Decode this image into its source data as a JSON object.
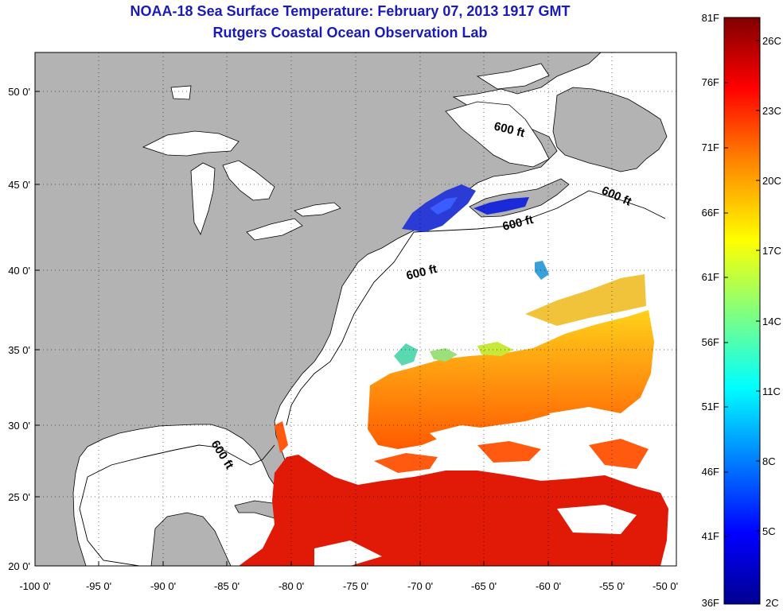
{
  "title": {
    "line1": "NOAA-18 Sea Surface Temperature:  February 07, 2013 1917 GMT",
    "line2": "Rutgers Coastal Ocean Observation Lab"
  },
  "map": {
    "lon_range": [
      -100,
      -50
    ],
    "lat_range": [
      20,
      52.5
    ],
    "x_ticks": [
      {
        "value": -100,
        "label": "-100 0'"
      },
      {
        "value": -95,
        "label": "-95 0'"
      },
      {
        "value": -90,
        "label": "-90 0'"
      },
      {
        "value": -85,
        "label": "-85 0'"
      },
      {
        "value": -80,
        "label": "-80 0'"
      },
      {
        "value": -75,
        "label": "-75 0'"
      },
      {
        "value": -70,
        "label": "-70 0'"
      },
      {
        "value": -65,
        "label": "-65 0'"
      },
      {
        "value": -60,
        "label": "-60 0'"
      },
      {
        "value": -55,
        "label": "-55 0'"
      },
      {
        "value": -50,
        "label": "-50 0'"
      }
    ],
    "y_ticks": [
      {
        "value": 20,
        "label": "20 0'"
      },
      {
        "value": 25,
        "label": "25 0'"
      },
      {
        "value": 30,
        "label": "30 0'"
      },
      {
        "value": 35,
        "label": "35 0'"
      },
      {
        "value": 40,
        "label": "40 0'"
      },
      {
        "value": 45,
        "label": "45 0'"
      },
      {
        "value": 50,
        "label": "50 0'"
      }
    ],
    "contour_labels": [
      "600 ft",
      "600 ft",
      "600 ft",
      "600 ft",
      "600 ft"
    ],
    "colors": {
      "land": "#b3b3b3",
      "ocean": "#ffffff",
      "cloud": "#ffffff"
    }
  },
  "colorbar": {
    "range_F": [
      36,
      81
    ],
    "fahrenheit": [
      "81F",
      "76F",
      "71F",
      "66F",
      "61F",
      "56F",
      "51F",
      "46F",
      "41F",
      "36F"
    ],
    "celsius": [
      "26C",
      "23C",
      "20C",
      "17C",
      "14C",
      "11C",
      "8C",
      "5C",
      "2C"
    ],
    "colors": [
      "#00008f",
      "#0000ff",
      "#00ffff",
      "#ffff00",
      "#ff8000",
      "#ff0000",
      "#800000"
    ]
  }
}
